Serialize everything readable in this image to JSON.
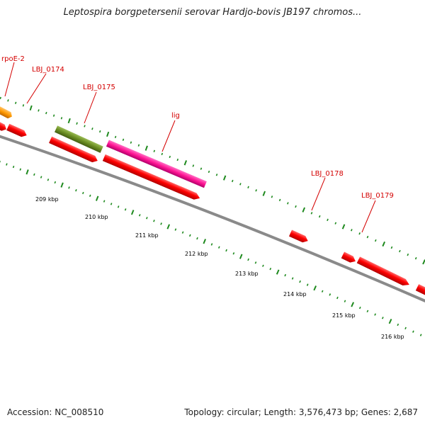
{
  "title": "Leptospira borgpetersenii serovar Hardjo-bovis JB197 chromos...",
  "footer": {
    "accession": "Accession: NC_008510",
    "summary": "Topology: circular; Length: 3,576,473 bp; Genes: 2,687"
  },
  "colors": {
    "backbone": "#8a8a8a",
    "gene_red": "#ff0000",
    "gene_orange": "#ff9900",
    "gene_olive": "#6b8e23",
    "gene_pink": "#ff1493",
    "tick_green": "#1f8a1f",
    "label_red": "#d40000"
  },
  "gene_labels": [
    "rpoE-2",
    "LBJ_0174",
    "LBJ_0175",
    "lig",
    "LBJ_0178",
    "LBJ_0179"
  ],
  "kbp_labels": [
    "209 kbp",
    "210 kbp",
    "211 kbp",
    "212 kbp",
    "213 kbp",
    "214 kbp",
    "215 kbp",
    "216 kbp"
  ]
}
